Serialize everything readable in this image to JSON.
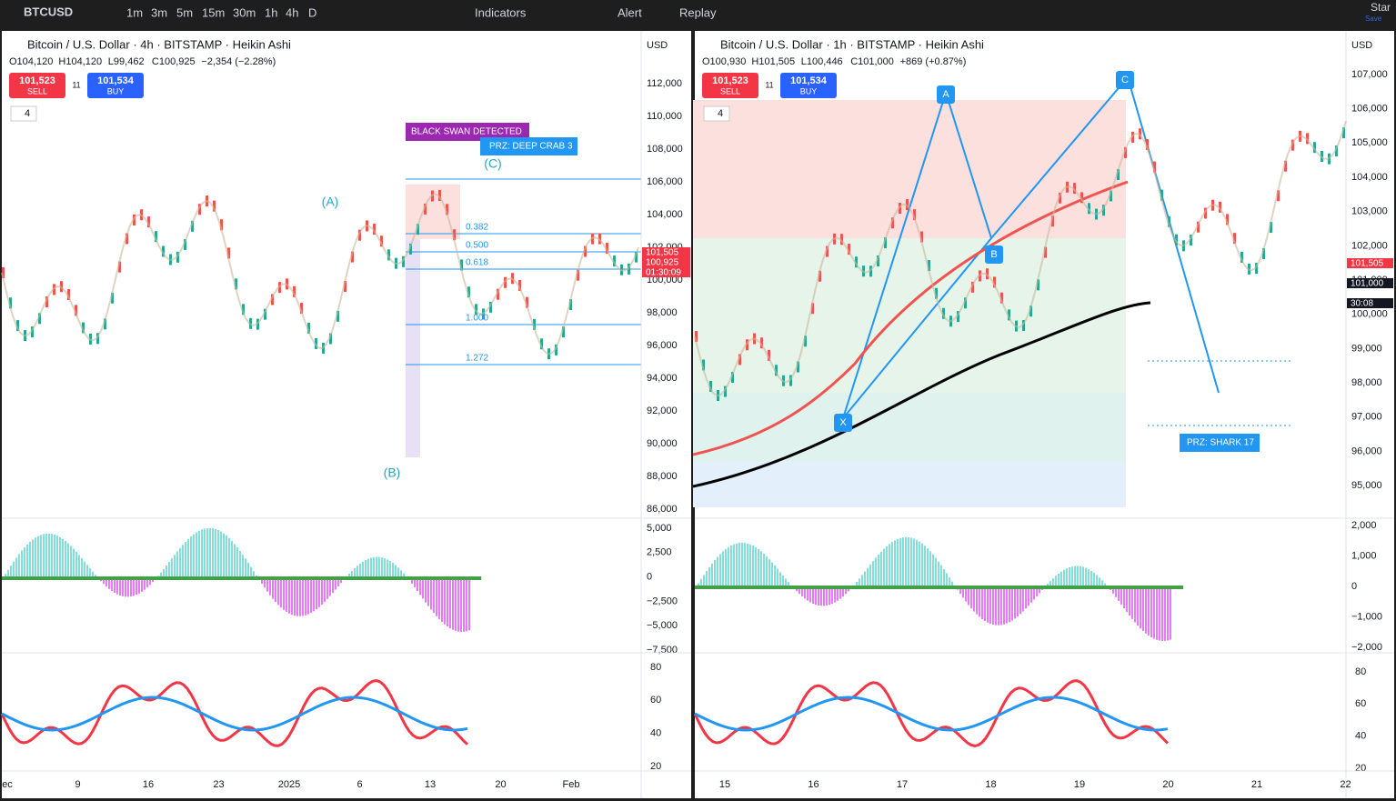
{
  "toolbar": {
    "symbol": "BTCUSD",
    "intervals": [
      "1m",
      "3m",
      "5m",
      "15m",
      "30m",
      "1h",
      "4h",
      "D"
    ],
    "indicators": "Indicators",
    "alert": "Alert",
    "replay": "Replay",
    "star": "Star",
    "save": "Save"
  },
  "left": {
    "title": "Bitcoin / U.S. Dollar · 4h · BITSTAMP · Heikin Ashi",
    "ohlc": [
      "O104,120",
      "H104,120",
      "L99,462",
      "C100,925",
      "−2,354 (−2.28%)"
    ],
    "sell_price": "101,523",
    "sell": "SELL",
    "spread": "11",
    "buy_price": "101,534",
    "buy": "BUY",
    "legend_count": "4",
    "currency": "USD",
    "price_axis": [
      "112,000",
      "110,000",
      "108,000",
      "106,000",
      "104,000",
      "102,000",
      "100,000",
      "98,000",
      "96,000",
      "94,000",
      "92,000",
      "90,000",
      "88,000",
      "86,000"
    ],
    "price_tags": [
      "101,505",
      "100,925",
      "01:30:09"
    ],
    "osc_axis": [
      "5,000",
      "2,500",
      "0",
      "−2,500",
      "−5,000",
      "−7,500"
    ],
    "rsi_axis": [
      "80",
      "60",
      "40",
      "20"
    ],
    "dates": [
      "ec",
      "9",
      "16",
      "23",
      "2025",
      "6",
      "13",
      "20",
      "Feb"
    ],
    "annotations": {
      "swan": "BLACK SWAN DETECTED",
      "prz": "PRZ: DEEP CRAB 3",
      "a": "(A)",
      "b": "(B)",
      "c": "(C)"
    },
    "fib": [
      "0.382",
      "0.500",
      "0.618",
      "1.000",
      "1.272"
    ]
  },
  "right": {
    "title": "Bitcoin / U.S. Dollar · 1h · BITSTAMP · Heikin Ashi",
    "ohlc": [
      "O100,930",
      "H101,505",
      "L100,446",
      "C101,000",
      "+869 (+0.87%)"
    ],
    "sell_price": "101,523",
    "sell": "SELL",
    "spread": "11",
    "buy_price": "101,534",
    "buy": "BUY",
    "legend_count": "4",
    "currency": "USD",
    "price_axis": [
      "107,000",
      "106,000",
      "105,000",
      "104,000",
      "103,000",
      "102,000",
      "101,000",
      "100,000",
      "99,000",
      "98,000",
      "97,000",
      "96,000",
      "95,000"
    ],
    "price_tags": [
      "101,505",
      "101,000",
      "30:08"
    ],
    "osc_axis": [
      "2,000",
      "1,000",
      "0",
      "−1,000",
      "−2,000"
    ],
    "rsi_axis": [
      "80",
      "60",
      "40",
      "20"
    ],
    "dates": [
      "15",
      "16",
      "17",
      "18",
      "19",
      "20",
      "21",
      "22"
    ],
    "annotations": {
      "prz": "PRZ: SHARK 17",
      "a": "A",
      "b": "B",
      "c": "C",
      "x": "X"
    }
  }
}
